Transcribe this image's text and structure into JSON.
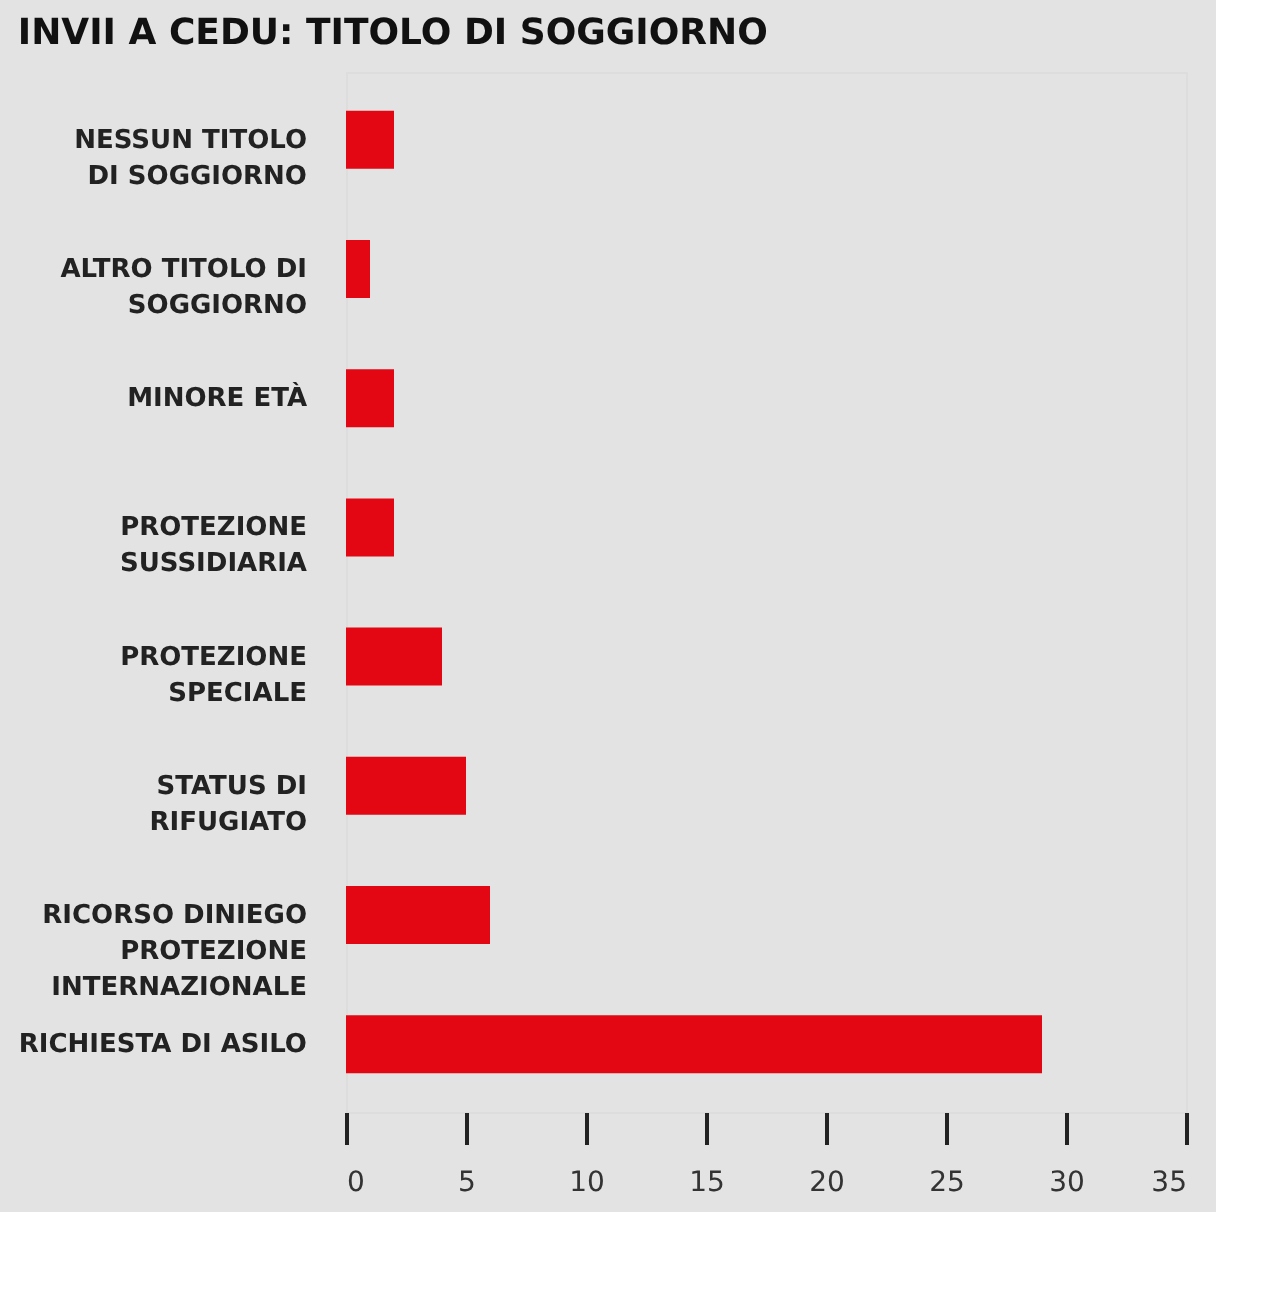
{
  "chart_data": {
    "type": "bar",
    "orientation": "horizontal",
    "title": "INVII A CEDU: TITOLO DI SOGGIORNO",
    "categories": [
      "NESSUN TITOLO DI SOGGIORNO",
      "ALTRO TITOLO DI SOGGIORNO",
      "MINORE ETÀ",
      "PROTEZIONE SUSSIDIARIA",
      "PROTEZIONE SPECIALE",
      "STATUS DI RIFUGIATO",
      "RICORSO DINIEGO PROTEZIONE INTERNAZIONALE",
      "RICHIESTA DI ASILO"
    ],
    "values": [
      2,
      1,
      2,
      2,
      4,
      5,
      6,
      29
    ],
    "color": "#e30613",
    "xlim": [
      0,
      35
    ],
    "xticks": [
      0,
      5,
      10,
      15,
      20,
      25,
      30,
      35
    ],
    "grid": false
  }
}
